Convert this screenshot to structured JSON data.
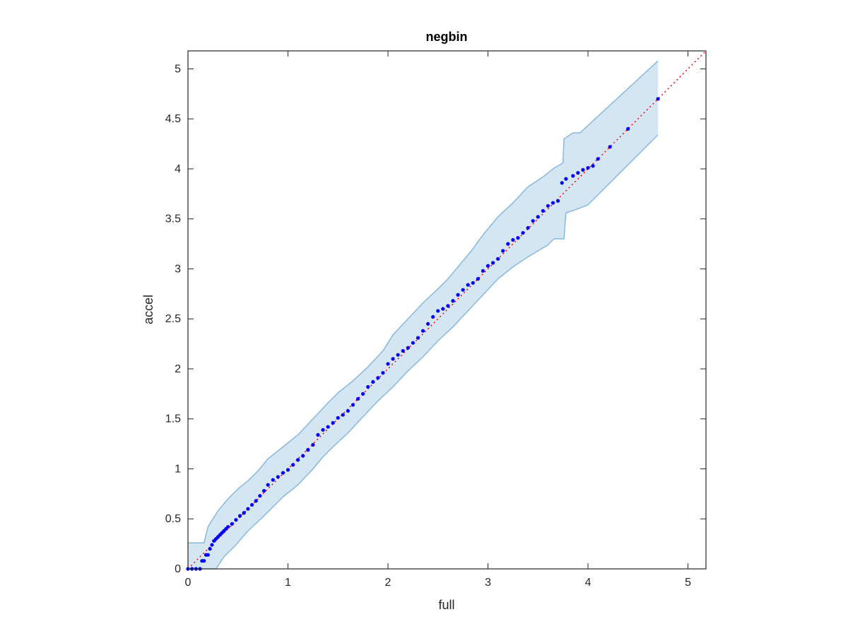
{
  "chart_data": {
    "type": "scatter",
    "title": "negbin",
    "xlabel": "full",
    "ylabel": "accel",
    "xlim": [
      0,
      5.18
    ],
    "ylim": [
      0,
      5.18
    ],
    "xticks": [
      "0",
      "1",
      "2",
      "3",
      "4",
      "5"
    ],
    "yticks": [
      "0",
      "0.5",
      "1",
      "1.5",
      "2",
      "2.5",
      "3",
      "3.5",
      "4",
      "4.5",
      "5"
    ],
    "grid": false,
    "legend": "none",
    "colors": {
      "points": "#0000ff",
      "reference_line": "#ff0000",
      "band_fill": "#d5e6f3",
      "band_edge": "#86b9dc",
      "axes": "#262626"
    },
    "reference_line": {
      "style": "dotted",
      "x": [
        0,
        5.18
      ],
      "y": [
        0,
        5.18
      ]
    },
    "confidence_band": {
      "upper": [
        [
          0,
          0.26
        ],
        [
          0.16,
          0.26
        ],
        [
          0.2,
          0.42
        ],
        [
          0.3,
          0.58
        ],
        [
          0.4,
          0.7
        ],
        [
          0.5,
          0.8
        ],
        [
          0.6,
          0.88
        ],
        [
          0.7,
          0.98
        ],
        [
          0.8,
          1.1
        ],
        [
          0.95,
          1.22
        ],
        [
          1.1,
          1.34
        ],
        [
          1.25,
          1.5
        ],
        [
          1.4,
          1.66
        ],
        [
          1.5,
          1.76
        ],
        [
          1.65,
          1.88
        ],
        [
          1.8,
          2.02
        ],
        [
          1.95,
          2.18
        ],
        [
          2.05,
          2.34
        ],
        [
          2.2,
          2.5
        ],
        [
          2.35,
          2.66
        ],
        [
          2.5,
          2.8
        ],
        [
          2.6,
          2.9
        ],
        [
          2.75,
          3.08
        ],
        [
          2.85,
          3.2
        ],
        [
          2.95,
          3.34
        ],
        [
          3.1,
          3.52
        ],
        [
          3.25,
          3.66
        ],
        [
          3.4,
          3.82
        ],
        [
          3.55,
          3.92
        ],
        [
          3.65,
          4.0
        ],
        [
          3.75,
          4.06
        ],
        [
          3.76,
          4.3
        ],
        [
          3.85,
          4.36
        ],
        [
          3.92,
          4.36
        ],
        [
          4.7,
          5.08
        ]
      ],
      "lower": [
        [
          0,
          0.0
        ],
        [
          0.28,
          0.0
        ],
        [
          0.36,
          0.12
        ],
        [
          0.48,
          0.24
        ],
        [
          0.6,
          0.38
        ],
        [
          0.75,
          0.52
        ],
        [
          0.85,
          0.62
        ],
        [
          0.95,
          0.72
        ],
        [
          1.1,
          0.84
        ],
        [
          1.25,
          1.0
        ],
        [
          1.35,
          1.12
        ],
        [
          1.45,
          1.22
        ],
        [
          1.6,
          1.36
        ],
        [
          1.75,
          1.52
        ],
        [
          1.9,
          1.68
        ],
        [
          2.05,
          1.82
        ],
        [
          2.2,
          1.98
        ],
        [
          2.35,
          2.12
        ],
        [
          2.5,
          2.28
        ],
        [
          2.65,
          2.42
        ],
        [
          2.8,
          2.58
        ],
        [
          2.95,
          2.74
        ],
        [
          3.1,
          2.9
        ],
        [
          3.25,
          3.02
        ],
        [
          3.4,
          3.12
        ],
        [
          3.5,
          3.18
        ],
        [
          3.6,
          3.24
        ],
        [
          3.66,
          3.3
        ],
        [
          3.76,
          3.3
        ],
        [
          3.78,
          3.56
        ],
        [
          3.9,
          3.6
        ],
        [
          4.0,
          3.64
        ],
        [
          4.7,
          4.34
        ]
      ]
    },
    "x": [
      0.0,
      0.04,
      0.08,
      0.12,
      0.14,
      0.16,
      0.18,
      0.2,
      0.22,
      0.24,
      0.26,
      0.28,
      0.3,
      0.32,
      0.34,
      0.36,
      0.38,
      0.4,
      0.44,
      0.48,
      0.52,
      0.56,
      0.6,
      0.64,
      0.68,
      0.72,
      0.76,
      0.8,
      0.85,
      0.9,
      0.95,
      1.0,
      1.05,
      1.1,
      1.15,
      1.2,
      1.25,
      1.3,
      1.35,
      1.4,
      1.45,
      1.5,
      1.55,
      1.6,
      1.65,
      1.7,
      1.75,
      1.8,
      1.85,
      1.9,
      1.95,
      2.0,
      2.05,
      2.1,
      2.15,
      2.2,
      2.25,
      2.3,
      2.35,
      2.4,
      2.45,
      2.5,
      2.55,
      2.6,
      2.65,
      2.7,
      2.75,
      2.8,
      2.85,
      2.9,
      2.95,
      3.0,
      3.05,
      3.1,
      3.15,
      3.2,
      3.25,
      3.3,
      3.35,
      3.4,
      3.45,
      3.5,
      3.55,
      3.6,
      3.65,
      3.7,
      3.74,
      3.78,
      3.85,
      3.9,
      3.95,
      4.0,
      4.05,
      4.1,
      4.22,
      4.4,
      4.7
    ],
    "y": [
      0.0,
      0.0,
      0.0,
      0.0,
      0.08,
      0.08,
      0.14,
      0.14,
      0.2,
      0.24,
      0.28,
      0.3,
      0.32,
      0.34,
      0.36,
      0.38,
      0.4,
      0.42,
      0.45,
      0.49,
      0.53,
      0.56,
      0.6,
      0.64,
      0.68,
      0.73,
      0.78,
      0.84,
      0.89,
      0.92,
      0.96,
      0.99,
      1.04,
      1.09,
      1.13,
      1.19,
      1.24,
      1.34,
      1.39,
      1.42,
      1.46,
      1.51,
      1.54,
      1.58,
      1.64,
      1.7,
      1.75,
      1.82,
      1.87,
      1.91,
      1.96,
      2.05,
      2.1,
      2.14,
      2.18,
      2.21,
      2.26,
      2.31,
      2.38,
      2.45,
      2.52,
      2.58,
      2.6,
      2.63,
      2.68,
      2.74,
      2.79,
      2.84,
      2.86,
      2.9,
      2.98,
      3.03,
      3.06,
      3.1,
      3.18,
      3.25,
      3.29,
      3.31,
      3.36,
      3.41,
      3.48,
      3.52,
      3.58,
      3.63,
      3.66,
      3.68,
      3.86,
      3.9,
      3.93,
      3.96,
      3.99,
      4.01,
      4.03,
      4.1,
      4.22,
      4.4,
      4.7
    ]
  }
}
